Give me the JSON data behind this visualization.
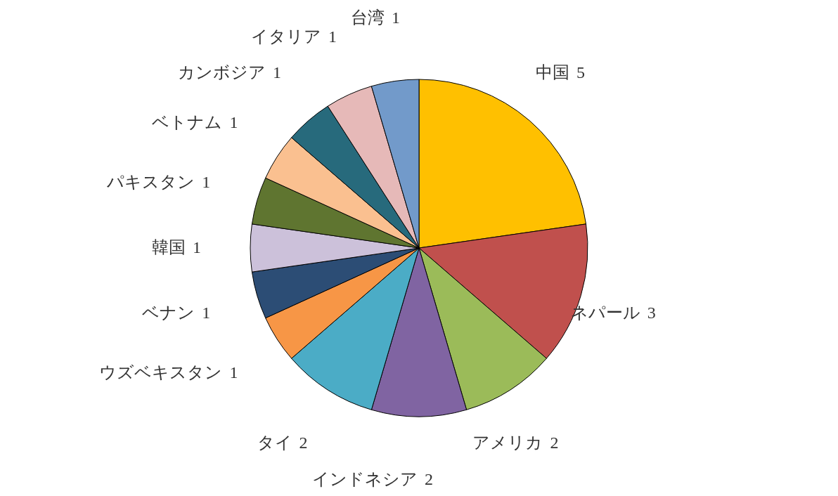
{
  "chart_data": {
    "type": "pie",
    "categories": [
      "中国",
      "ネパール",
      "アメリカ",
      "インドネシア",
      "タイ",
      "ウズベキスタン",
      "ベナン",
      "韓国",
      "パキスタン",
      "ベトナム",
      "カンボジア",
      "イタリア",
      "台湾"
    ],
    "values": [
      5,
      3,
      2,
      2,
      2,
      1,
      1,
      1,
      1,
      1,
      1,
      1,
      1
    ],
    "colors": [
      "#ffc000",
      "#c0504d",
      "#9bbb59",
      "#8064a2",
      "#4bacc6",
      "#f79646",
      "#2c4d75",
      "#ccc1da",
      "#5f7530",
      "#fac090",
      "#276a7c",
      "#e6b9b8",
      "#729aca"
    ],
    "data_labels": true
  }
}
